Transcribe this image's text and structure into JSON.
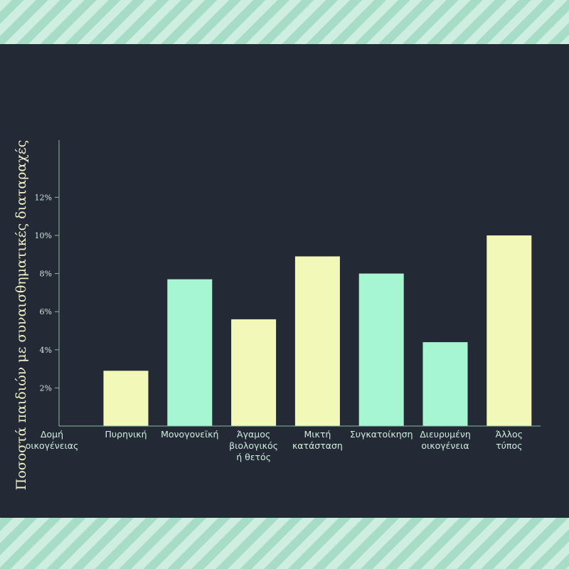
{
  "chart_data": {
    "type": "bar",
    "ylabel": "Ποσοστά παιδιών με συναισθηματικές διαταραχές",
    "xlabel": "Δομή οικογένειας",
    "categories": [
      "Πυρηνική",
      "Μονογονεϊκή",
      "Άγαμος βιολογικός ή θετός",
      "Μικτή κατάσταση",
      "Συγκατοίκηση",
      "Διευρυμένη οικογένεια",
      "Άλλος τύπος"
    ],
    "category_lines": [
      [
        "Πυρηνική"
      ],
      [
        "Μονογονεϊκή"
      ],
      [
        "Άγαμος",
        "βιολογικός",
        "ή θετός"
      ],
      [
        "Μικτή",
        "κατάσταση"
      ],
      [
        "Συγκατοίκηση"
      ],
      [
        "Διευρυμένη",
        "οικογένεια"
      ],
      [
        "Άλλος",
        "τύπος"
      ]
    ],
    "values": [
      2.9,
      7.7,
      5.6,
      8.9,
      8.0,
      4.4,
      10.0
    ],
    "ylim": [
      0,
      15
    ],
    "yticks": [
      2,
      4,
      6,
      8,
      10,
      12
    ],
    "ytick_labels": [
      "2%",
      "4%",
      "6%",
      "8%",
      "10%",
      "12%"
    ],
    "grid": false,
    "colors": {
      "bar_a": "#f2f8b8",
      "bar_b": "#a6f6d2",
      "axis": "#8fb5a4",
      "panel": "#242a35",
      "stripe_light": "#cdeee0",
      "stripe_dark": "#a7dcc6"
    }
  }
}
